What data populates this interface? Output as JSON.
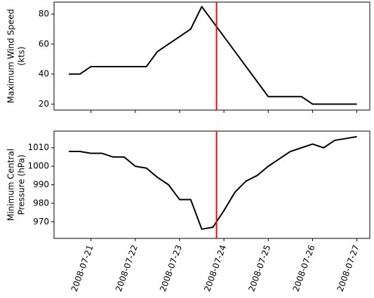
{
  "chart_data": [
    {
      "type": "line",
      "ylabel": [
        "Maximum Wind Speed",
        "(kts)"
      ],
      "x": [
        "2008-07-20T12:00",
        "2008-07-20T18:00",
        "2008-07-21T00:00",
        "2008-07-21T06:00",
        "2008-07-21T12:00",
        "2008-07-21T18:00",
        "2008-07-22T00:00",
        "2008-07-22T06:00",
        "2008-07-22T12:00",
        "2008-07-22T18:00",
        "2008-07-23T00:00",
        "2008-07-23T06:00",
        "2008-07-23T12:00",
        "2008-07-23T18:00",
        "2008-07-24T00:00",
        "2008-07-24T06:00",
        "2008-07-24T12:00",
        "2008-07-24T18:00",
        "2008-07-25T00:00",
        "2008-07-25T06:00",
        "2008-07-25T12:00",
        "2008-07-25T18:00",
        "2008-07-26T00:00",
        "2008-07-26T06:00",
        "2008-07-26T12:00",
        "2008-07-26T18:00",
        "2008-07-27T00:00"
      ],
      "values": [
        40,
        40,
        45,
        45,
        45,
        45,
        45,
        45,
        55,
        60,
        65,
        70,
        85,
        75,
        65,
        55,
        45,
        35,
        25,
        25,
        25,
        25,
        20,
        20,
        20,
        20,
        20
      ],
      "color": "#000000",
      "xlim": [
        "2008-07-20T04:00",
        "2008-07-27T07:00"
      ],
      "ylim": [
        16,
        88
      ],
      "yticks": [
        20,
        40,
        60,
        80
      ],
      "vline": {
        "x": "2008-07-23T20:00",
        "color": "#ff0000"
      }
    },
    {
      "type": "line",
      "ylabel": [
        "Minimum Central",
        "Pressure (hPa)"
      ],
      "x": [
        "2008-07-20T12:00",
        "2008-07-20T18:00",
        "2008-07-21T00:00",
        "2008-07-21T06:00",
        "2008-07-21T12:00",
        "2008-07-21T18:00",
        "2008-07-22T00:00",
        "2008-07-22T06:00",
        "2008-07-22T12:00",
        "2008-07-22T18:00",
        "2008-07-23T00:00",
        "2008-07-23T06:00",
        "2008-07-23T12:00",
        "2008-07-23T18:00",
        "2008-07-24T00:00",
        "2008-07-24T06:00",
        "2008-07-24T12:00",
        "2008-07-24T18:00",
        "2008-07-25T00:00",
        "2008-07-25T06:00",
        "2008-07-25T12:00",
        "2008-07-25T18:00",
        "2008-07-26T00:00",
        "2008-07-26T06:00",
        "2008-07-26T12:00",
        "2008-07-26T18:00",
        "2008-07-27T00:00"
      ],
      "values": [
        1008,
        1008,
        1007,
        1007,
        1005,
        1005,
        1000,
        999,
        994,
        990,
        982,
        982,
        966,
        967,
        976,
        986,
        992,
        995,
        1000,
        1004,
        1008,
        1010,
        1012,
        1010,
        1014,
        1015,
        1016
      ],
      "color": "#000000",
      "xlim": [
        "2008-07-20T04:00",
        "2008-07-27T07:00"
      ],
      "xticks": [
        "2008-07-21",
        "2008-07-22",
        "2008-07-23",
        "2008-07-24",
        "2008-07-25",
        "2008-07-26",
        "2008-07-27"
      ],
      "ylim": [
        961,
        1019
      ],
      "yticks": [
        970,
        980,
        990,
        1000,
        1010
      ],
      "vline": {
        "x": "2008-07-23T20:00",
        "color": "#ff0000"
      }
    }
  ]
}
